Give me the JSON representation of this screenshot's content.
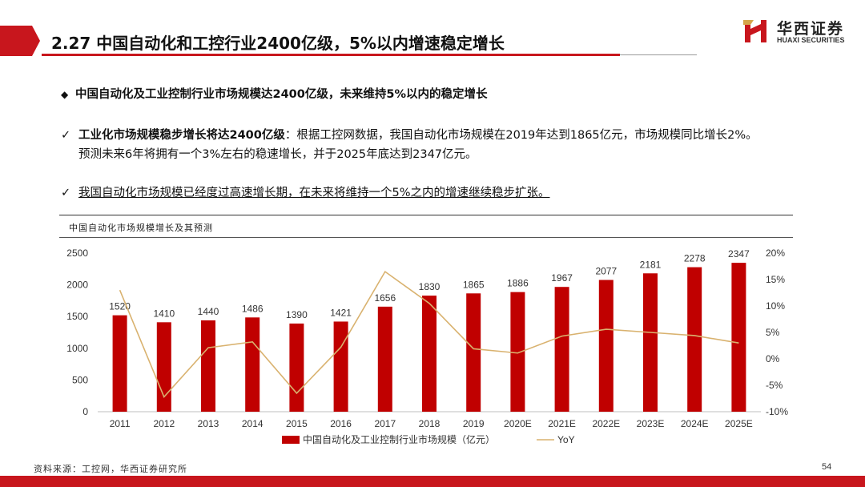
{
  "header": {
    "title": "2.27 中国自动化和工控行业2400亿级，5%以内增速稳定增长",
    "logo_cn": "华西证券",
    "logo_en": "HUAXI SECURITIES"
  },
  "bullets": {
    "main_marker": "◆",
    "main": "中国自动化及工业控制行业市场规模达2400亿级，未来维持5%以内的稳定增长",
    "check_marker": "✓",
    "item1_bold": "工业化市场规模稳步增长将达2400亿级",
    "item1_text": "：根据工控网数据，我国自动化市场规模在2019年达到1865亿元，市场规模同比增长2%。",
    "item1_line2": "预测未来6年将拥有一个3%左右的稳速增长，并于2025年底达到2347亿元。",
    "item2_text": "我国自动化市场规模已经度过高速增长期，在未来将维持一个5%之内的增速继续稳步扩张。"
  },
  "chart_caption": "中国自动化市场规模增长及其预测",
  "chart_data": {
    "type": "bar",
    "categories": [
      "2011",
      "2012",
      "2013",
      "2014",
      "2015",
      "2016",
      "2017",
      "2018",
      "2019",
      "2020E",
      "2021E",
      "2022E",
      "2023E",
      "2024E",
      "2025E"
    ],
    "series": [
      {
        "name": "中国自动化及工业控制行业市场规模（亿元）",
        "type": "bar",
        "axis": "left",
        "color": "#c00000",
        "values": [
          1520,
          1410,
          1440,
          1486,
          1390,
          1421,
          1656,
          1830,
          1865,
          1886,
          1967,
          2077,
          2181,
          2278,
          2347
        ]
      },
      {
        "name": "YoY",
        "type": "line",
        "axis": "right",
        "color": "#d9b26f",
        "values": [
          13.0,
          -7.2,
          2.1,
          3.2,
          -6.5,
          2.2,
          16.5,
          10.5,
          1.9,
          1.1,
          4.3,
          5.6,
          5.0,
          4.4,
          3.0
        ]
      }
    ],
    "left_axis": {
      "min": 0,
      "max": 2500,
      "ticks": [
        "0",
        "500",
        "1000",
        "1500",
        "2000",
        "2500"
      ]
    },
    "right_axis": {
      "min": -10,
      "max": 20,
      "ticks": [
        "-10%",
        "-5%",
        "0%",
        "5%",
        "10%",
        "15%",
        "20%"
      ]
    },
    "legend_position": "bottom",
    "grid": false
  },
  "footer": {
    "source": "资料来源：工控网，华西证券研究所",
    "page": "54"
  },
  "colors": {
    "brand_red": "#c8161d",
    "bar_red": "#c00000",
    "line_gold": "#d9b26f"
  }
}
